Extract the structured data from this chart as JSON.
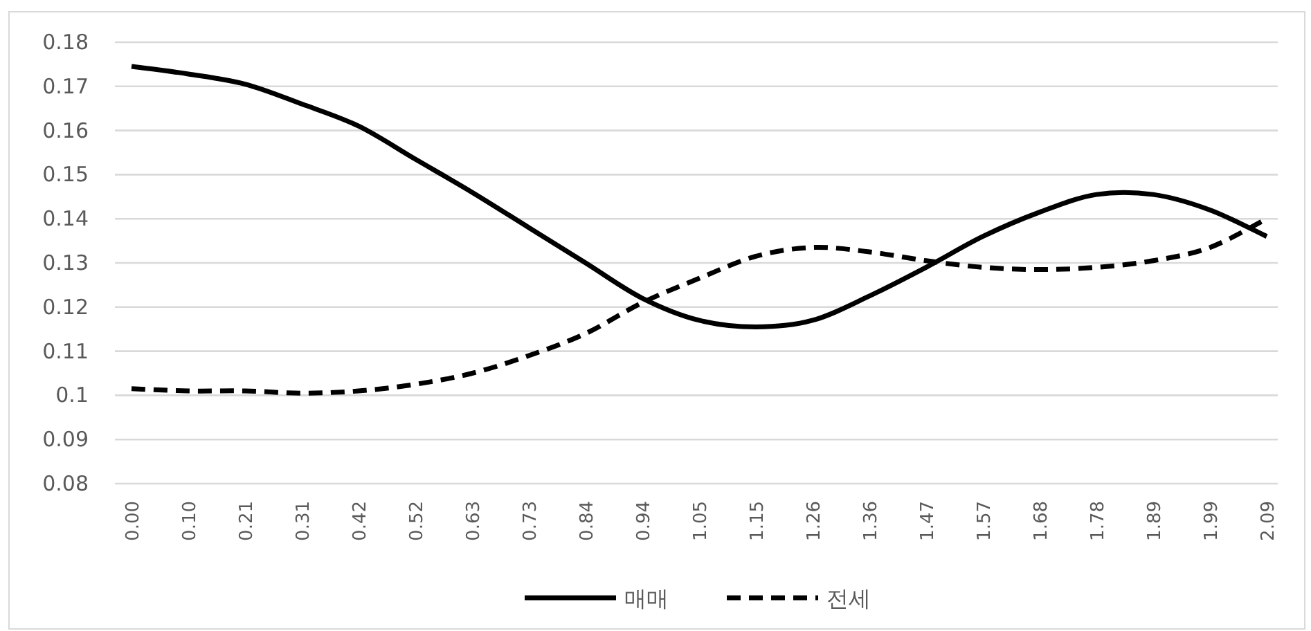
{
  "chart_data": {
    "type": "line",
    "categories": [
      "0.00",
      "0.10",
      "0.21",
      "0.31",
      "0.42",
      "0.52",
      "0.63",
      "0.73",
      "0.84",
      "0.94",
      "1.05",
      "1.15",
      "1.26",
      "1.36",
      "1.47",
      "1.57",
      "1.68",
      "1.78",
      "1.89",
      "1.99",
      "2.09"
    ],
    "series": [
      {
        "name": "매매",
        "color": "#000000",
        "line_style": "solid",
        "values": [
          0.1745,
          0.1728,
          0.1705,
          0.166,
          0.161,
          0.1535,
          0.146,
          0.138,
          0.13,
          0.122,
          0.117,
          0.1155,
          0.117,
          0.1225,
          0.129,
          0.136,
          0.1415,
          0.1455,
          0.1455,
          0.142,
          0.136
        ]
      },
      {
        "name": "전세",
        "color": "#000000",
        "line_style": "dashed",
        "values": [
          0.1015,
          0.101,
          0.101,
          0.1005,
          0.101,
          0.1025,
          0.105,
          0.109,
          0.114,
          0.121,
          0.1265,
          0.1315,
          0.1335,
          0.1325,
          0.1305,
          0.129,
          0.1285,
          0.129,
          0.1305,
          0.1335,
          0.14
        ]
      }
    ],
    "ylim": [
      0.08,
      0.18
    ],
    "yticks": [
      0.08,
      0.09,
      {
        "value": 0.1,
        "label": "0.1"
      },
      0.11,
      0.12,
      0.13,
      0.14,
      0.15,
      0.16,
      0.17,
      0.18
    ],
    "grid": "y",
    "legend": "bottom",
    "marker": "none"
  }
}
